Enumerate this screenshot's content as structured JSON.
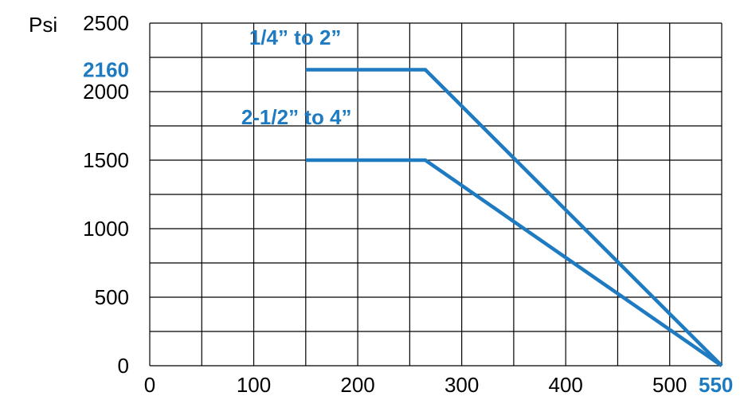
{
  "chart_data": {
    "type": "line",
    "title": "",
    "xlabel": "",
    "ylabel": "Psi",
    "xlim": [
      0,
      550
    ],
    "ylim": [
      0,
      2500
    ],
    "x_ticks": [
      0,
      100,
      200,
      300,
      400,
      500
    ],
    "y_ticks": [
      0,
      500,
      1000,
      1500,
      2000,
      2500
    ],
    "highlight_x_tick": 550,
    "highlight_y_tick": 2160,
    "grid": true,
    "grid_x_step": 50,
    "grid_y_step": 250,
    "series": [
      {
        "name": "1/4” to 2”",
        "points": [
          [
            150,
            2160
          ],
          [
            265,
            2160
          ],
          [
            550,
            0
          ]
        ]
      },
      {
        "name": "2-1/2” to 4”",
        "points": [
          [
            150,
            1500
          ],
          [
            265,
            1500
          ],
          [
            550,
            0
          ]
        ]
      }
    ]
  },
  "colors": {
    "accent": "#1f7bc1",
    "grid": "#000000",
    "text": "#000000"
  }
}
